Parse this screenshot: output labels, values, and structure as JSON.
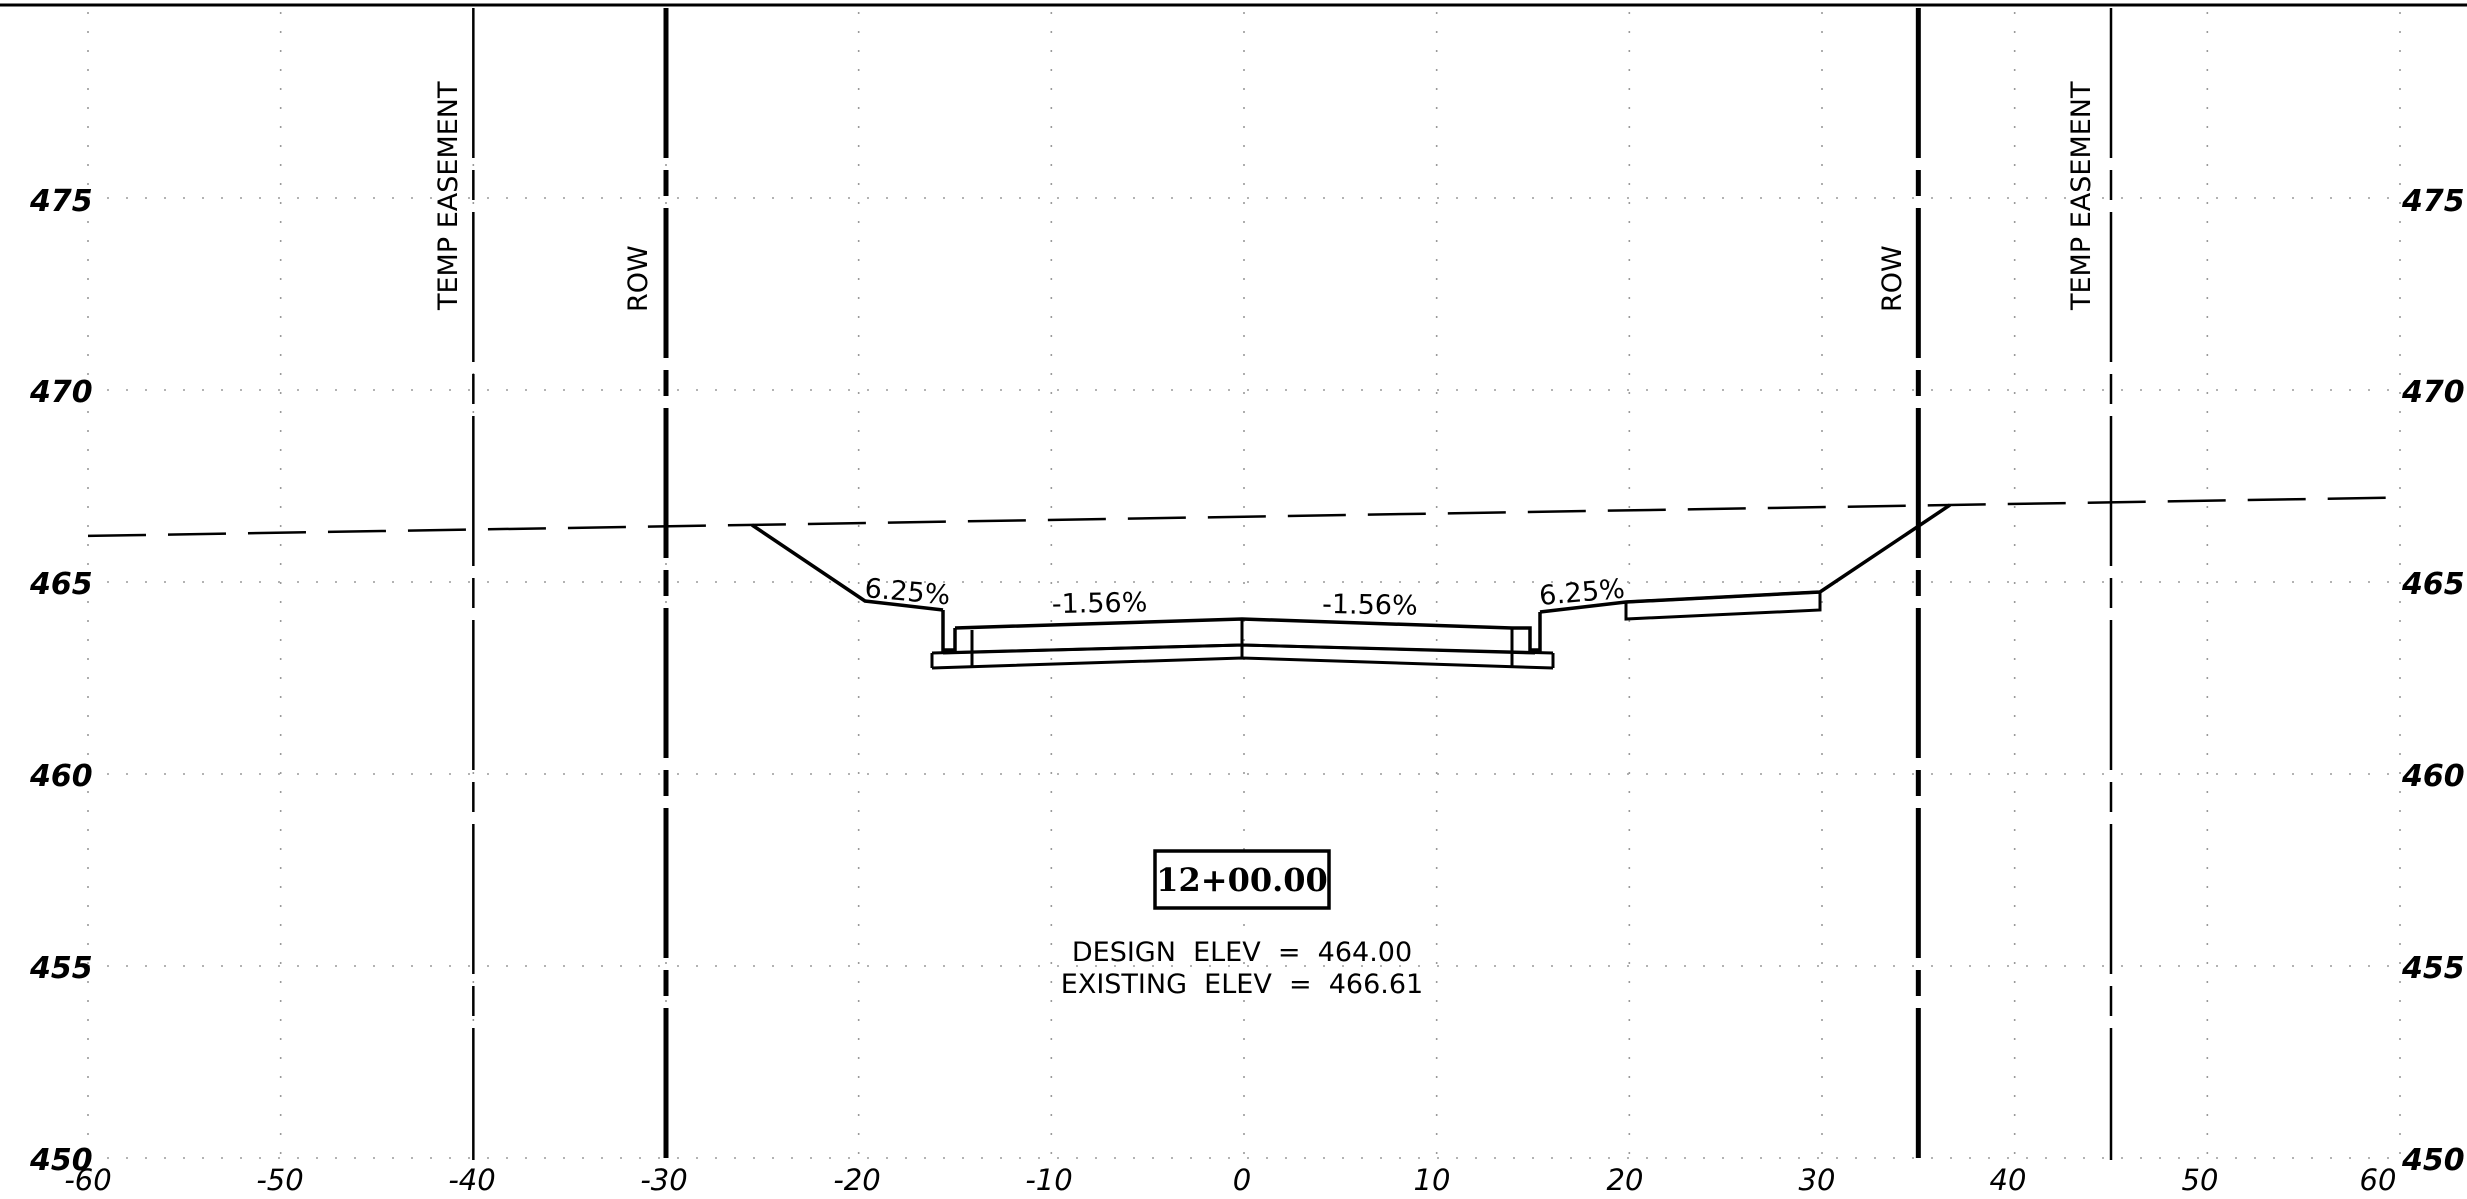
{
  "drawing": {
    "x_axis": {
      "range": [
        -60,
        60
      ],
      "ticks": [
        "-60",
        "-50",
        "-40",
        "-30",
        "-20",
        "-10",
        "0",
        "10",
        "20",
        "30",
        "40",
        "50",
        "60"
      ],
      "tick_values": [
        -60,
        -50,
        -40,
        -30,
        -20,
        -10,
        0,
        10,
        20,
        30,
        40,
        50,
        60
      ]
    },
    "y_axis": {
      "range": [
        450,
        480
      ],
      "ticks": [
        "450",
        "455",
        "460",
        "465",
        "470",
        "475"
      ],
      "tick_values": [
        450,
        455,
        460,
        465,
        470,
        475
      ],
      "labels_on_both_sides": true
    },
    "grid": "dotted",
    "station_label": "12+00.00",
    "design_elev_text": "DESIGN  ELEV  =  464.00",
    "existing_elev_text": "EXISTING  ELEV  =  466.61",
    "vertical_lines": [
      {
        "name": "temp-easement-left",
        "offset": -40,
        "label": "TEMP  EASEMENT",
        "style": "thin-dashed"
      },
      {
        "name": "row-left",
        "offset": -30,
        "label": "ROW",
        "style": "thick-dashed"
      },
      {
        "name": "row-right",
        "offset": 35,
        "label": "ROW",
        "style": "thick-dashed"
      },
      {
        "name": "temp-easement-right",
        "offset": 45,
        "label": "TEMP  EASEMENT",
        "style": "thin-dashed"
      }
    ],
    "existing_ground": [
      [
        -60,
        466.2
      ],
      [
        60,
        467.2
      ]
    ],
    "proposed_profile": [
      [
        -25.5,
        466.4
      ],
      [
        -19.8,
        464.5
      ],
      [
        -15.4,
        464.3
      ],
      [
        -15.4,
        463.3
      ],
      [
        -14.2,
        463.3
      ],
      [
        -14.2,
        463.7
      ],
      [
        0,
        464.0
      ],
      [
        14.2,
        463.7
      ],
      [
        14.2,
        463.3
      ],
      [
        15.4,
        463.3
      ],
      [
        15.4,
        464.3
      ],
      [
        20,
        464.6
      ],
      [
        30,
        464.8
      ],
      [
        37,
        467.0
      ]
    ],
    "slope_labels": [
      {
        "text": "6.25%",
        "x": -17.6,
        "y": 464.5,
        "angle": 4
      },
      {
        "text": "-1.56%",
        "x": -7.1,
        "y": 464.3,
        "angle": -1
      },
      {
        "text": "-1.56%",
        "x": 7.1,
        "y": 464.3,
        "angle": 1
      },
      {
        "text": "6.25%",
        "x": 17.6,
        "y": 464.6,
        "angle": -4
      }
    ],
    "colors": {
      "line": "#000000",
      "grid": "#9a9a9a",
      "background": "#ffffff"
    }
  }
}
